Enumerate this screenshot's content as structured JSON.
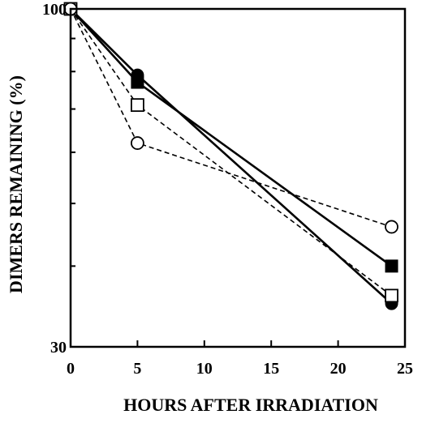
{
  "chart_data": {
    "type": "line",
    "title": "",
    "xlabel": "HOURS AFTER IRRADIATION",
    "ylabel": "DIMERS REMAINING (%)",
    "xlim": [
      0,
      25
    ],
    "ylim": [
      30,
      100
    ],
    "yscale": "log",
    "x_ticks": [
      "0",
      "5",
      "10",
      "15",
      "20",
      "25"
    ],
    "y_ticks": [
      "30",
      "100"
    ],
    "grid": false,
    "series": [
      {
        "marker": "filled-circle",
        "line": "solid",
        "points": [
          {
            "x": 0,
            "y": 100
          },
          {
            "x": 5,
            "y": 79
          },
          {
            "x": 24,
            "y": 35
          }
        ]
      },
      {
        "marker": "filled-square",
        "line": "solid",
        "points": [
          {
            "x": 0,
            "y": 100
          },
          {
            "x": 5,
            "y": 77
          },
          {
            "x": 24,
            "y": 40
          }
        ]
      },
      {
        "marker": "open-square",
        "line": "dashed",
        "points": [
          {
            "x": 0,
            "y": 100
          },
          {
            "x": 5,
            "y": 71
          },
          {
            "x": 24,
            "y": 36
          }
        ]
      },
      {
        "marker": "open-circle",
        "line": "dashed",
        "points": [
          {
            "x": 0,
            "y": 100
          },
          {
            "x": 5,
            "y": 62
          },
          {
            "x": 24,
            "y": 46
          }
        ]
      }
    ]
  }
}
